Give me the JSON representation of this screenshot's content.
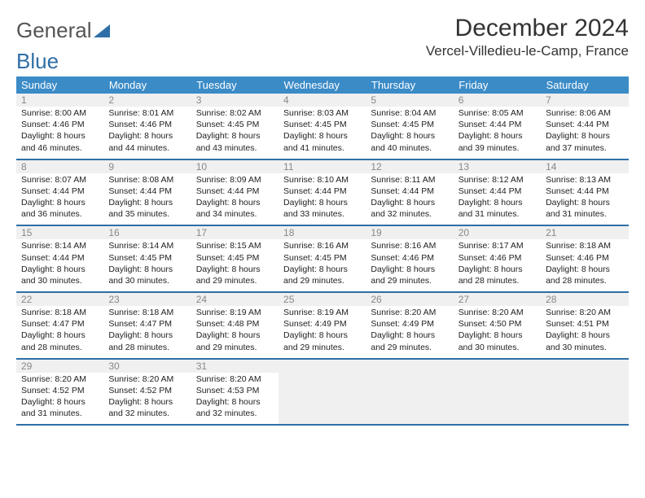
{
  "brand": {
    "part1": "General",
    "part2": "Blue"
  },
  "title": "December 2024",
  "location": "Vercel-Villedieu-le-Camp, France",
  "colors": {
    "header_bg": "#3b8bc7",
    "header_fg": "#ffffff",
    "rule": "#2f6fa7",
    "daynum_bg": "#f0f0f0",
    "daynum_fg": "#888888",
    "text": "#222222",
    "brand_grey": "#555555",
    "brand_blue": "#2f6fa7"
  },
  "weekdays": [
    "Sunday",
    "Monday",
    "Tuesday",
    "Wednesday",
    "Thursday",
    "Friday",
    "Saturday"
  ],
  "days": [
    {
      "n": 1,
      "sunrise": "8:00 AM",
      "sunset": "4:46 PM",
      "dl": "8 hours and 46 minutes."
    },
    {
      "n": 2,
      "sunrise": "8:01 AM",
      "sunset": "4:46 PM",
      "dl": "8 hours and 44 minutes."
    },
    {
      "n": 3,
      "sunrise": "8:02 AM",
      "sunset": "4:45 PM",
      "dl": "8 hours and 43 minutes."
    },
    {
      "n": 4,
      "sunrise": "8:03 AM",
      "sunset": "4:45 PM",
      "dl": "8 hours and 41 minutes."
    },
    {
      "n": 5,
      "sunrise": "8:04 AM",
      "sunset": "4:45 PM",
      "dl": "8 hours and 40 minutes."
    },
    {
      "n": 6,
      "sunrise": "8:05 AM",
      "sunset": "4:44 PM",
      "dl": "8 hours and 39 minutes."
    },
    {
      "n": 7,
      "sunrise": "8:06 AM",
      "sunset": "4:44 PM",
      "dl": "8 hours and 37 minutes."
    },
    {
      "n": 8,
      "sunrise": "8:07 AM",
      "sunset": "4:44 PM",
      "dl": "8 hours and 36 minutes."
    },
    {
      "n": 9,
      "sunrise": "8:08 AM",
      "sunset": "4:44 PM",
      "dl": "8 hours and 35 minutes."
    },
    {
      "n": 10,
      "sunrise": "8:09 AM",
      "sunset": "4:44 PM",
      "dl": "8 hours and 34 minutes."
    },
    {
      "n": 11,
      "sunrise": "8:10 AM",
      "sunset": "4:44 PM",
      "dl": "8 hours and 33 minutes."
    },
    {
      "n": 12,
      "sunrise": "8:11 AM",
      "sunset": "4:44 PM",
      "dl": "8 hours and 32 minutes."
    },
    {
      "n": 13,
      "sunrise": "8:12 AM",
      "sunset": "4:44 PM",
      "dl": "8 hours and 31 minutes."
    },
    {
      "n": 14,
      "sunrise": "8:13 AM",
      "sunset": "4:44 PM",
      "dl": "8 hours and 31 minutes."
    },
    {
      "n": 15,
      "sunrise": "8:14 AM",
      "sunset": "4:44 PM",
      "dl": "8 hours and 30 minutes."
    },
    {
      "n": 16,
      "sunrise": "8:14 AM",
      "sunset": "4:45 PM",
      "dl": "8 hours and 30 minutes."
    },
    {
      "n": 17,
      "sunrise": "8:15 AM",
      "sunset": "4:45 PM",
      "dl": "8 hours and 29 minutes."
    },
    {
      "n": 18,
      "sunrise": "8:16 AM",
      "sunset": "4:45 PM",
      "dl": "8 hours and 29 minutes."
    },
    {
      "n": 19,
      "sunrise": "8:16 AM",
      "sunset": "4:46 PM",
      "dl": "8 hours and 29 minutes."
    },
    {
      "n": 20,
      "sunrise": "8:17 AM",
      "sunset": "4:46 PM",
      "dl": "8 hours and 28 minutes."
    },
    {
      "n": 21,
      "sunrise": "8:18 AM",
      "sunset": "4:46 PM",
      "dl": "8 hours and 28 minutes."
    },
    {
      "n": 22,
      "sunrise": "8:18 AM",
      "sunset": "4:47 PM",
      "dl": "8 hours and 28 minutes."
    },
    {
      "n": 23,
      "sunrise": "8:18 AM",
      "sunset": "4:47 PM",
      "dl": "8 hours and 28 minutes."
    },
    {
      "n": 24,
      "sunrise": "8:19 AM",
      "sunset": "4:48 PM",
      "dl": "8 hours and 29 minutes."
    },
    {
      "n": 25,
      "sunrise": "8:19 AM",
      "sunset": "4:49 PM",
      "dl": "8 hours and 29 minutes."
    },
    {
      "n": 26,
      "sunrise": "8:20 AM",
      "sunset": "4:49 PM",
      "dl": "8 hours and 29 minutes."
    },
    {
      "n": 27,
      "sunrise": "8:20 AM",
      "sunset": "4:50 PM",
      "dl": "8 hours and 30 minutes."
    },
    {
      "n": 28,
      "sunrise": "8:20 AM",
      "sunset": "4:51 PM",
      "dl": "8 hours and 30 minutes."
    },
    {
      "n": 29,
      "sunrise": "8:20 AM",
      "sunset": "4:52 PM",
      "dl": "8 hours and 31 minutes."
    },
    {
      "n": 30,
      "sunrise": "8:20 AM",
      "sunset": "4:52 PM",
      "dl": "8 hours and 32 minutes."
    },
    {
      "n": 31,
      "sunrise": "8:20 AM",
      "sunset": "4:53 PM",
      "dl": "8 hours and 32 minutes."
    }
  ],
  "labels": {
    "sunrise": "Sunrise:",
    "sunset": "Sunset:",
    "daylight": "Daylight:"
  },
  "layout": {
    "first_weekday_index": 0,
    "rows": 5,
    "cols": 7
  }
}
